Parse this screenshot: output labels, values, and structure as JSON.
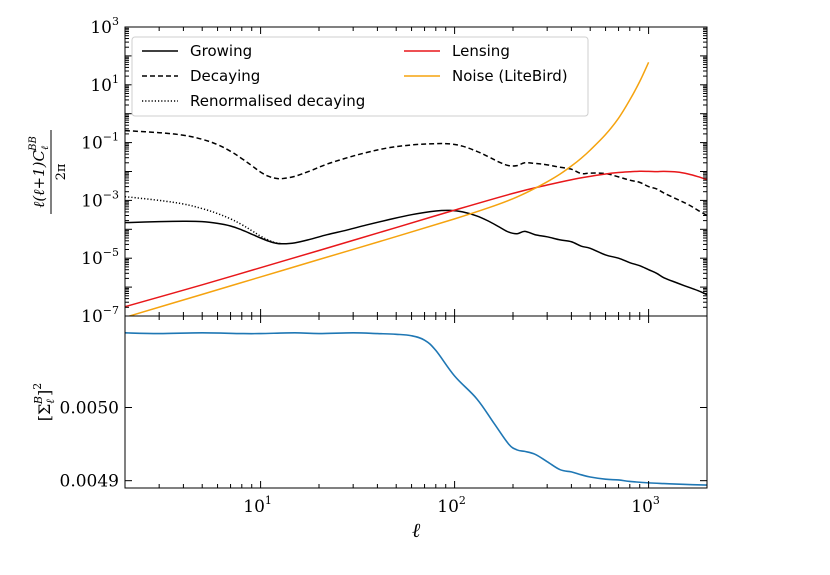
{
  "chart_data": [
    {
      "type": "line",
      "panel": "top",
      "xscale": "log",
      "yscale": "log",
      "xlim": [
        2,
        2000
      ],
      "ylim": [
        1e-07,
        1000
      ],
      "xlabel": "ℓ",
      "ylabel": "ℓ(ℓ+1)C_ℓ^BB / 2π",
      "ylabel_parts": {
        "numerator": "ℓ(ℓ+1)C",
        "sub": "ℓ",
        "sup": "BB",
        "denominator": "2π"
      },
      "yticks": [
        {
          "value": 1e-07,
          "base": "10",
          "exp": "−7"
        },
        {
          "value": 1e-05,
          "base": "10",
          "exp": "−5"
        },
        {
          "value": 0.001,
          "base": "10",
          "exp": "−3"
        },
        {
          "value": 0.1,
          "base": "10",
          "exp": "−1"
        },
        {
          "value": 10,
          "base": "10",
          "exp": "1"
        },
        {
          "value": 1000,
          "base": "10",
          "exp": "3"
        }
      ],
      "legend_position": "upper-left, two columns",
      "series": [
        {
          "name": "Growing",
          "color": "#000000",
          "style": "solid",
          "x": [
            2,
            3,
            4,
            5,
            6,
            7,
            8,
            9,
            10,
            11,
            12,
            13,
            15,
            18,
            22,
            28,
            35,
            45,
            60,
            80,
            95,
            110,
            130,
            150,
            170,
            190,
            210,
            230,
            260,
            300,
            350,
            400,
            450,
            500,
            600,
            700,
            800,
            900,
            1000,
            1100,
            1200,
            1400,
            1600,
            1800,
            2000
          ],
          "y": [
            0.00017,
            0.000185,
            0.00019,
            0.000185,
            0.00016,
            0.00013,
            9.5e-05,
            6.8e-05,
            5e-05,
            3.9e-05,
            3.3e-05,
            3.15e-05,
            3.4e-05,
            4.5e-05,
            6.5e-05,
            9.5e-05,
            0.00014,
            0.00021,
            0.00032,
            0.00043,
            0.00045,
            0.0004,
            0.00029,
            0.00019,
            0.00012,
            8e-05,
            7e-05,
            8.5e-05,
            6.5e-05,
            5.5e-05,
            4.3e-05,
            3.7e-05,
            2.6e-05,
            2.2e-05,
            1.3e-05,
            1e-05,
            7e-06,
            5.5e-06,
            4e-06,
            3e-06,
            2.1e-06,
            1.4e-06,
            1e-06,
            7.5e-07,
            5.5e-07
          ]
        },
        {
          "name": "Decaying",
          "color": "#000000",
          "style": "dashed",
          "x": [
            2,
            3,
            4,
            5,
            6,
            7,
            8,
            9,
            10,
            11,
            12,
            13,
            15,
            18,
            22,
            28,
            35,
            45,
            60,
            80,
            95,
            110,
            130,
            150,
            170,
            190,
            210,
            230,
            260,
            300,
            350,
            400,
            450,
            500,
            600,
            700,
            800,
            900,
            1000,
            1100,
            1200,
            1400,
            1600,
            1800,
            2000
          ],
          "y": [
            0.26,
            0.22,
            0.18,
            0.13,
            0.085,
            0.05,
            0.028,
            0.016,
            0.0095,
            0.0068,
            0.0058,
            0.0057,
            0.0068,
            0.0105,
            0.018,
            0.03,
            0.045,
            0.065,
            0.083,
            0.092,
            0.09,
            0.075,
            0.05,
            0.032,
            0.021,
            0.016,
            0.016,
            0.02,
            0.019,
            0.017,
            0.014,
            0.012,
            0.0085,
            0.0088,
            0.0085,
            0.0065,
            0.005,
            0.0042,
            0.003,
            0.0025,
            0.0018,
            0.0011,
            0.00072,
            0.00045,
            0.0003
          ]
        },
        {
          "name": "Renormalised decaying",
          "color": "#000000",
          "style": "dotted",
          "x": [
            2,
            3,
            4,
            5,
            6,
            7,
            8,
            9,
            10,
            11,
            12,
            13
          ],
          "y": [
            0.00135,
            0.001,
            0.00075,
            0.00052,
            0.00035,
            0.00023,
            0.000145,
            9e-05,
            5.8e-05,
            4.2e-05,
            3.4e-05,
            3.15e-05
          ]
        },
        {
          "name": "Lensing",
          "color": "#e8171a",
          "style": "solid",
          "x": [
            2,
            5,
            10,
            20,
            50,
            100,
            200,
            300,
            400,
            500,
            600,
            700,
            800,
            900,
            1000,
            1100,
            1200,
            1400,
            1600,
            1800,
            2000
          ],
          "y": [
            2.1e-07,
            1.2e-06,
            4.7e-06,
            1.85e-05,
            0.000115,
            0.00046,
            0.00175,
            0.0034,
            0.0052,
            0.0068,
            0.0082,
            0.0092,
            0.0098,
            0.0102,
            0.0101,
            0.0099,
            0.0101,
            0.0096,
            0.0082,
            0.0066,
            0.0052
          ]
        },
        {
          "name": "Noise (LiteBird)",
          "color": "#f5a30f",
          "style": "solid",
          "x": [
            2,
            5,
            10,
            20,
            50,
            100,
            150,
            200,
            250,
            300,
            350,
            400,
            450,
            500,
            600,
            700,
            800,
            900,
            1000
          ],
          "y": [
            9e-08,
            5.6e-07,
            2.25e-06,
            9e-06,
            5.6e-05,
            0.00023,
            0.00056,
            0.00115,
            0.0023,
            0.0044,
            0.0082,
            0.0155,
            0.029,
            0.055,
            0.19,
            0.7,
            3.0,
            13,
            60
          ]
        }
      ]
    },
    {
      "type": "line",
      "panel": "bottom",
      "xscale": "log",
      "xlim": [
        2,
        2000
      ],
      "ylim": [
        0.00489,
        0.005125
      ],
      "xlabel": "ℓ",
      "ylabel": "[Σ_ℓ^B]^2",
      "ylabel_parts": {
        "base": "[Σ",
        "sub": "ℓ",
        "sup": "B",
        "close": "]",
        "power": "2"
      },
      "yticks": [
        {
          "value": 0.0049,
          "label": "0.0049"
        },
        {
          "value": 0.005,
          "label": "0.0050"
        }
      ],
      "xticks": [
        {
          "value": 10,
          "base": "10",
          "exp": "1"
        },
        {
          "value": 100,
          "base": "10",
          "exp": "2"
        },
        {
          "value": 1000,
          "base": "10",
          "exp": "3"
        }
      ],
      "series": [
        {
          "name": "Σ²",
          "color": "#1f77b4",
          "style": "solid",
          "x": [
            2,
            3,
            5,
            8,
            10,
            15,
            20,
            30,
            40,
            50,
            60,
            70,
            80,
            100,
            130,
            160,
            190,
            210,
            230,
            260,
            300,
            350,
            400,
            450,
            500,
            600,
            700,
            800,
            1000,
            1200,
            1500,
            2000
          ],
          "y": [
            0.005102,
            0.005101,
            0.005102,
            0.005101,
            0.005101,
            0.005102,
            0.005101,
            0.005102,
            0.005101,
            0.0051,
            0.005098,
            0.005092,
            0.005078,
            0.005043,
            0.005012,
            0.004978,
            0.00495,
            0.004942,
            0.00494,
            0.004936,
            0.004926,
            0.004915,
            0.004912,
            0.004908,
            0.004905,
            0.004902,
            0.004901,
            0.004899,
            0.004897,
            0.004896,
            0.004895,
            0.004894
          ]
        }
      ]
    }
  ]
}
